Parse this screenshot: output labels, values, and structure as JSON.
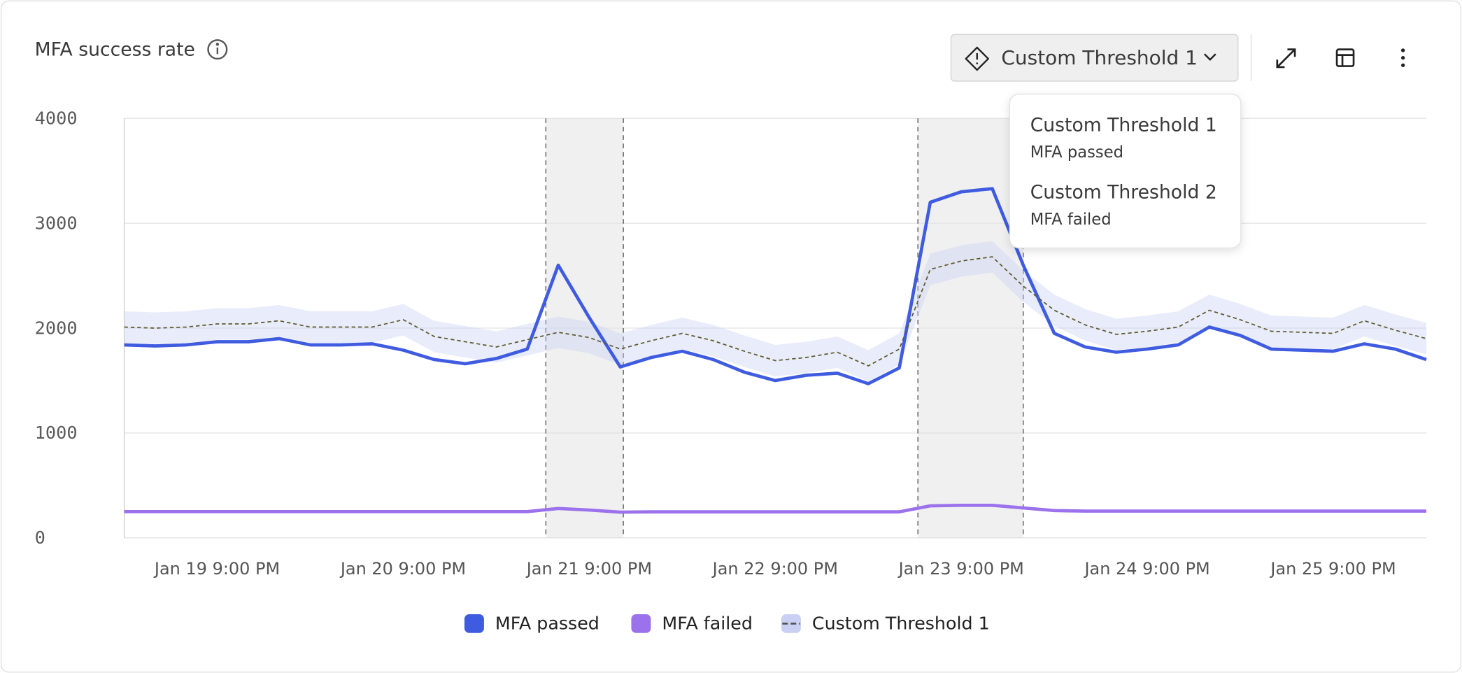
{
  "chart_data": {
    "type": "line",
    "title": "MFA success rate",
    "threshold_button": "Custom Threshold 1",
    "threshold_menu": [
      {
        "name": "Custom Threshold 1",
        "metric": "MFA passed"
      },
      {
        "name": "Custom Threshold 2",
        "metric": "MFA failed"
      }
    ],
    "categories": [
      null,
      null,
      null,
      "Jan 19 9:00 PM",
      null,
      null,
      null,
      null,
      null,
      "Jan 20 9:00 PM",
      null,
      null,
      null,
      null,
      null,
      "Jan 21 9:00 PM",
      null,
      null,
      null,
      null,
      null,
      "Jan 22 9:00 PM",
      null,
      null,
      null,
      null,
      null,
      "Jan 23 9:00 PM",
      null,
      null,
      null,
      null,
      null,
      "Jan 24 9:00 PM",
      null,
      null,
      null,
      null,
      null,
      "Jan 25 9:00 PM",
      null,
      null,
      null
    ],
    "series": [
      {
        "name": "MFA passed",
        "color": "#3f5be0",
        "values": [
          1840,
          1830,
          1840,
          1870,
          1870,
          1900,
          1840,
          1840,
          1850,
          1790,
          1700,
          1660,
          1710,
          1800,
          2600,
          2100,
          1630,
          1720,
          1780,
          1700,
          1580,
          1500,
          1550,
          1570,
          1470,
          1620,
          3200,
          3300,
          3330,
          2600,
          1950,
          1820,
          1770,
          1800,
          1840,
          2010,
          1930,
          1800,
          1790,
          1780,
          1850,
          1800,
          1700
        ]
      },
      {
        "name": "MFA failed",
        "color": "#9b72ec",
        "values": [
          250,
          250,
          250,
          250,
          250,
          250,
          250,
          250,
          250,
          250,
          250,
          250,
          250,
          250,
          280,
          265,
          245,
          248,
          248,
          248,
          248,
          248,
          248,
          248,
          248,
          248,
          305,
          310,
          310,
          285,
          260,
          255,
          255,
          255,
          255,
          255,
          255,
          255,
          255,
          255,
          255,
          255,
          255
        ]
      },
      {
        "name": "Custom Threshold 1",
        "color": "#5c5a2e",
        "band_color": "#c9d0f3",
        "band_width": 150,
        "values": [
          2010,
          2000,
          2010,
          2040,
          2040,
          2070,
          2010,
          2010,
          2010,
          2080,
          1920,
          1870,
          1820,
          1890,
          1960,
          1910,
          1800,
          1880,
          1950,
          1880,
          1780,
          1690,
          1720,
          1770,
          1640,
          1800,
          2560,
          2640,
          2680,
          2400,
          2170,
          2030,
          1940,
          1970,
          2010,
          2170,
          2080,
          1970,
          1960,
          1950,
          2070,
          1980,
          1900
        ]
      }
    ],
    "anomaly_ranges": [
      [
        13.6,
        16.1
      ],
      [
        25.6,
        29
      ]
    ],
    "ylim": [
      0,
      4000
    ],
    "yticks": [
      0,
      1000,
      2000,
      3000,
      4000
    ],
    "grid": true
  }
}
